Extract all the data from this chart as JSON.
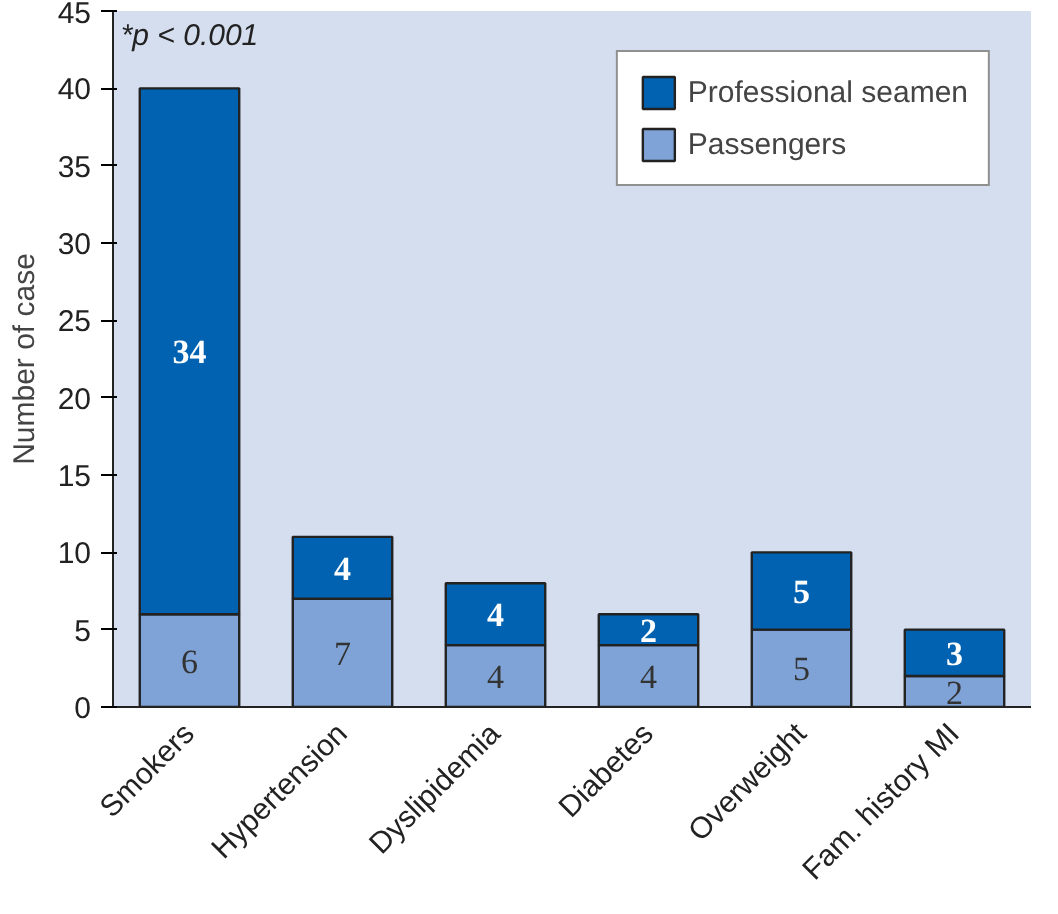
{
  "chart_data": {
    "type": "bar",
    "stacked": true,
    "ylabel": "Number of case",
    "annotations": [
      "*p < 0.001"
    ],
    "categories": [
      "Smokers",
      "Hypertension",
      "Dyslipidemia",
      "Diabetes",
      "Overweight",
      "Fam. history MI"
    ],
    "series": [
      {
        "name": "Passengers",
        "color": "#7fa3d6",
        "values": [
          6,
          7,
          4,
          4,
          5,
          2
        ]
      },
      {
        "name": "Professional seamen",
        "color": "#0062b0",
        "values": [
          34,
          4,
          4,
          2,
          5,
          3
        ]
      }
    ],
    "ylim": [
      0,
      45
    ],
    "yticks": [
      0,
      5,
      10,
      15,
      20,
      25,
      30,
      35,
      40,
      45
    ],
    "data_labels": true,
    "legend": "top right",
    "grid": false
  }
}
